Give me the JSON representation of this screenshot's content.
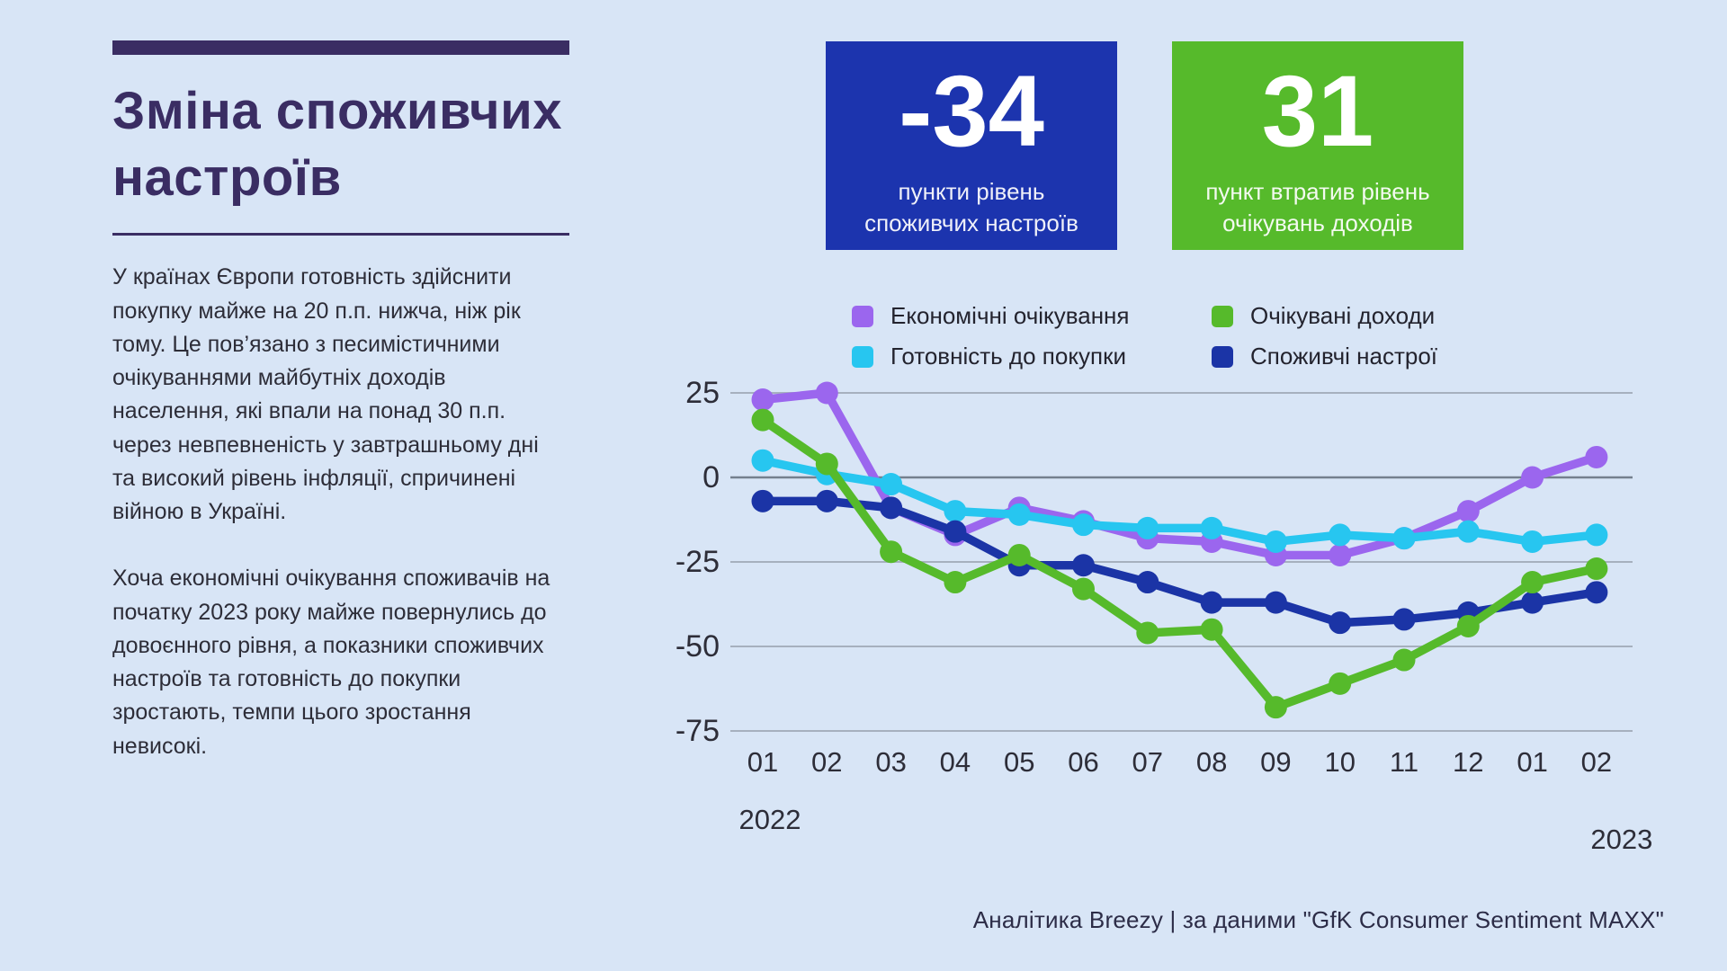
{
  "page": {
    "background_color": "#d8e5f6"
  },
  "sidebar": {
    "title": "Зміна споживчих настроїв",
    "paragraph1": "У країнах Європи готовність здійснити покупку майже на 20 п.п. нижча, ніж рік тому. Це пов’язано з песимістичними очікуваннями майбутніх доходів населення, які впали на понад 30 п.п. через невпевненість у завтрашньому дні та високий рівень інфляції, спричинені війною в Україні.",
    "paragraph2": "Хоча економічні очікування споживачів на початку 2023 року майже повернулись до довоєнного рівня, а показники споживчих настроїв та готовність до покупки зростають, темпи цього зростання невисокі."
  },
  "stat_cards": [
    {
      "value": "-34",
      "label": "пункти рівень споживчих настроїв",
      "color": "#1c34ae"
    },
    {
      "value": "31",
      "label": "пункт втратив рівень очікувань доходів",
      "color": "#56ba2b"
    }
  ],
  "footer": {
    "credit": "Аналітика Breezy | за даними \"GfK Consumer Sentiment MAXX\""
  },
  "chart_data": {
    "type": "line",
    "categories": [
      "01",
      "02",
      "03",
      "04",
      "05",
      "06",
      "07",
      "08",
      "09",
      "10",
      "11",
      "12",
      "01",
      "02"
    ],
    "x_years": [
      {
        "label": "2022",
        "month_index": 0
      },
      {
        "label": "2023",
        "month_index": 13
      }
    ],
    "series": [
      {
        "name": "Економічні очікування",
        "color": "#9b66ee",
        "values": [
          23,
          25,
          -9,
          -17,
          -9,
          -13,
          -18,
          -19,
          -23,
          -23,
          -18,
          -10,
          0,
          6
        ]
      },
      {
        "name": "Очікувані доходи",
        "color": "#56ba2b",
        "values": [
          17,
          4,
          -22,
          -31,
          -23,
          -33,
          -46,
          -45,
          -68,
          -61,
          -54,
          -44,
          -31,
          -27
        ]
      },
      {
        "name": "Готовність до покупки",
        "color": "#27c6f0",
        "values": [
          5,
          1,
          -2,
          -10,
          -11,
          -14,
          -15,
          -15,
          -19,
          -17,
          -18,
          -16,
          -19,
          -17
        ]
      },
      {
        "name": "Споживчі настрої",
        "color": "#1b34a6",
        "values": [
          -7,
          -7,
          -9,
          -16,
          -26,
          -26,
          -31,
          -37,
          -37,
          -43,
          -42,
          -40,
          -37,
          -34
        ]
      }
    ],
    "z_order": [
      0,
      2,
      3,
      1
    ],
    "title": "",
    "xlabel": "",
    "ylabel": "",
    "yticks": [
      25,
      0,
      -25,
      -50,
      -75
    ],
    "ylim": [
      -75,
      25
    ],
    "grid": true,
    "legend_position": "top",
    "grid_color": "#a6b0be",
    "zero_line_color": "#74808e",
    "axis_text_color": "#2d2d38"
  }
}
